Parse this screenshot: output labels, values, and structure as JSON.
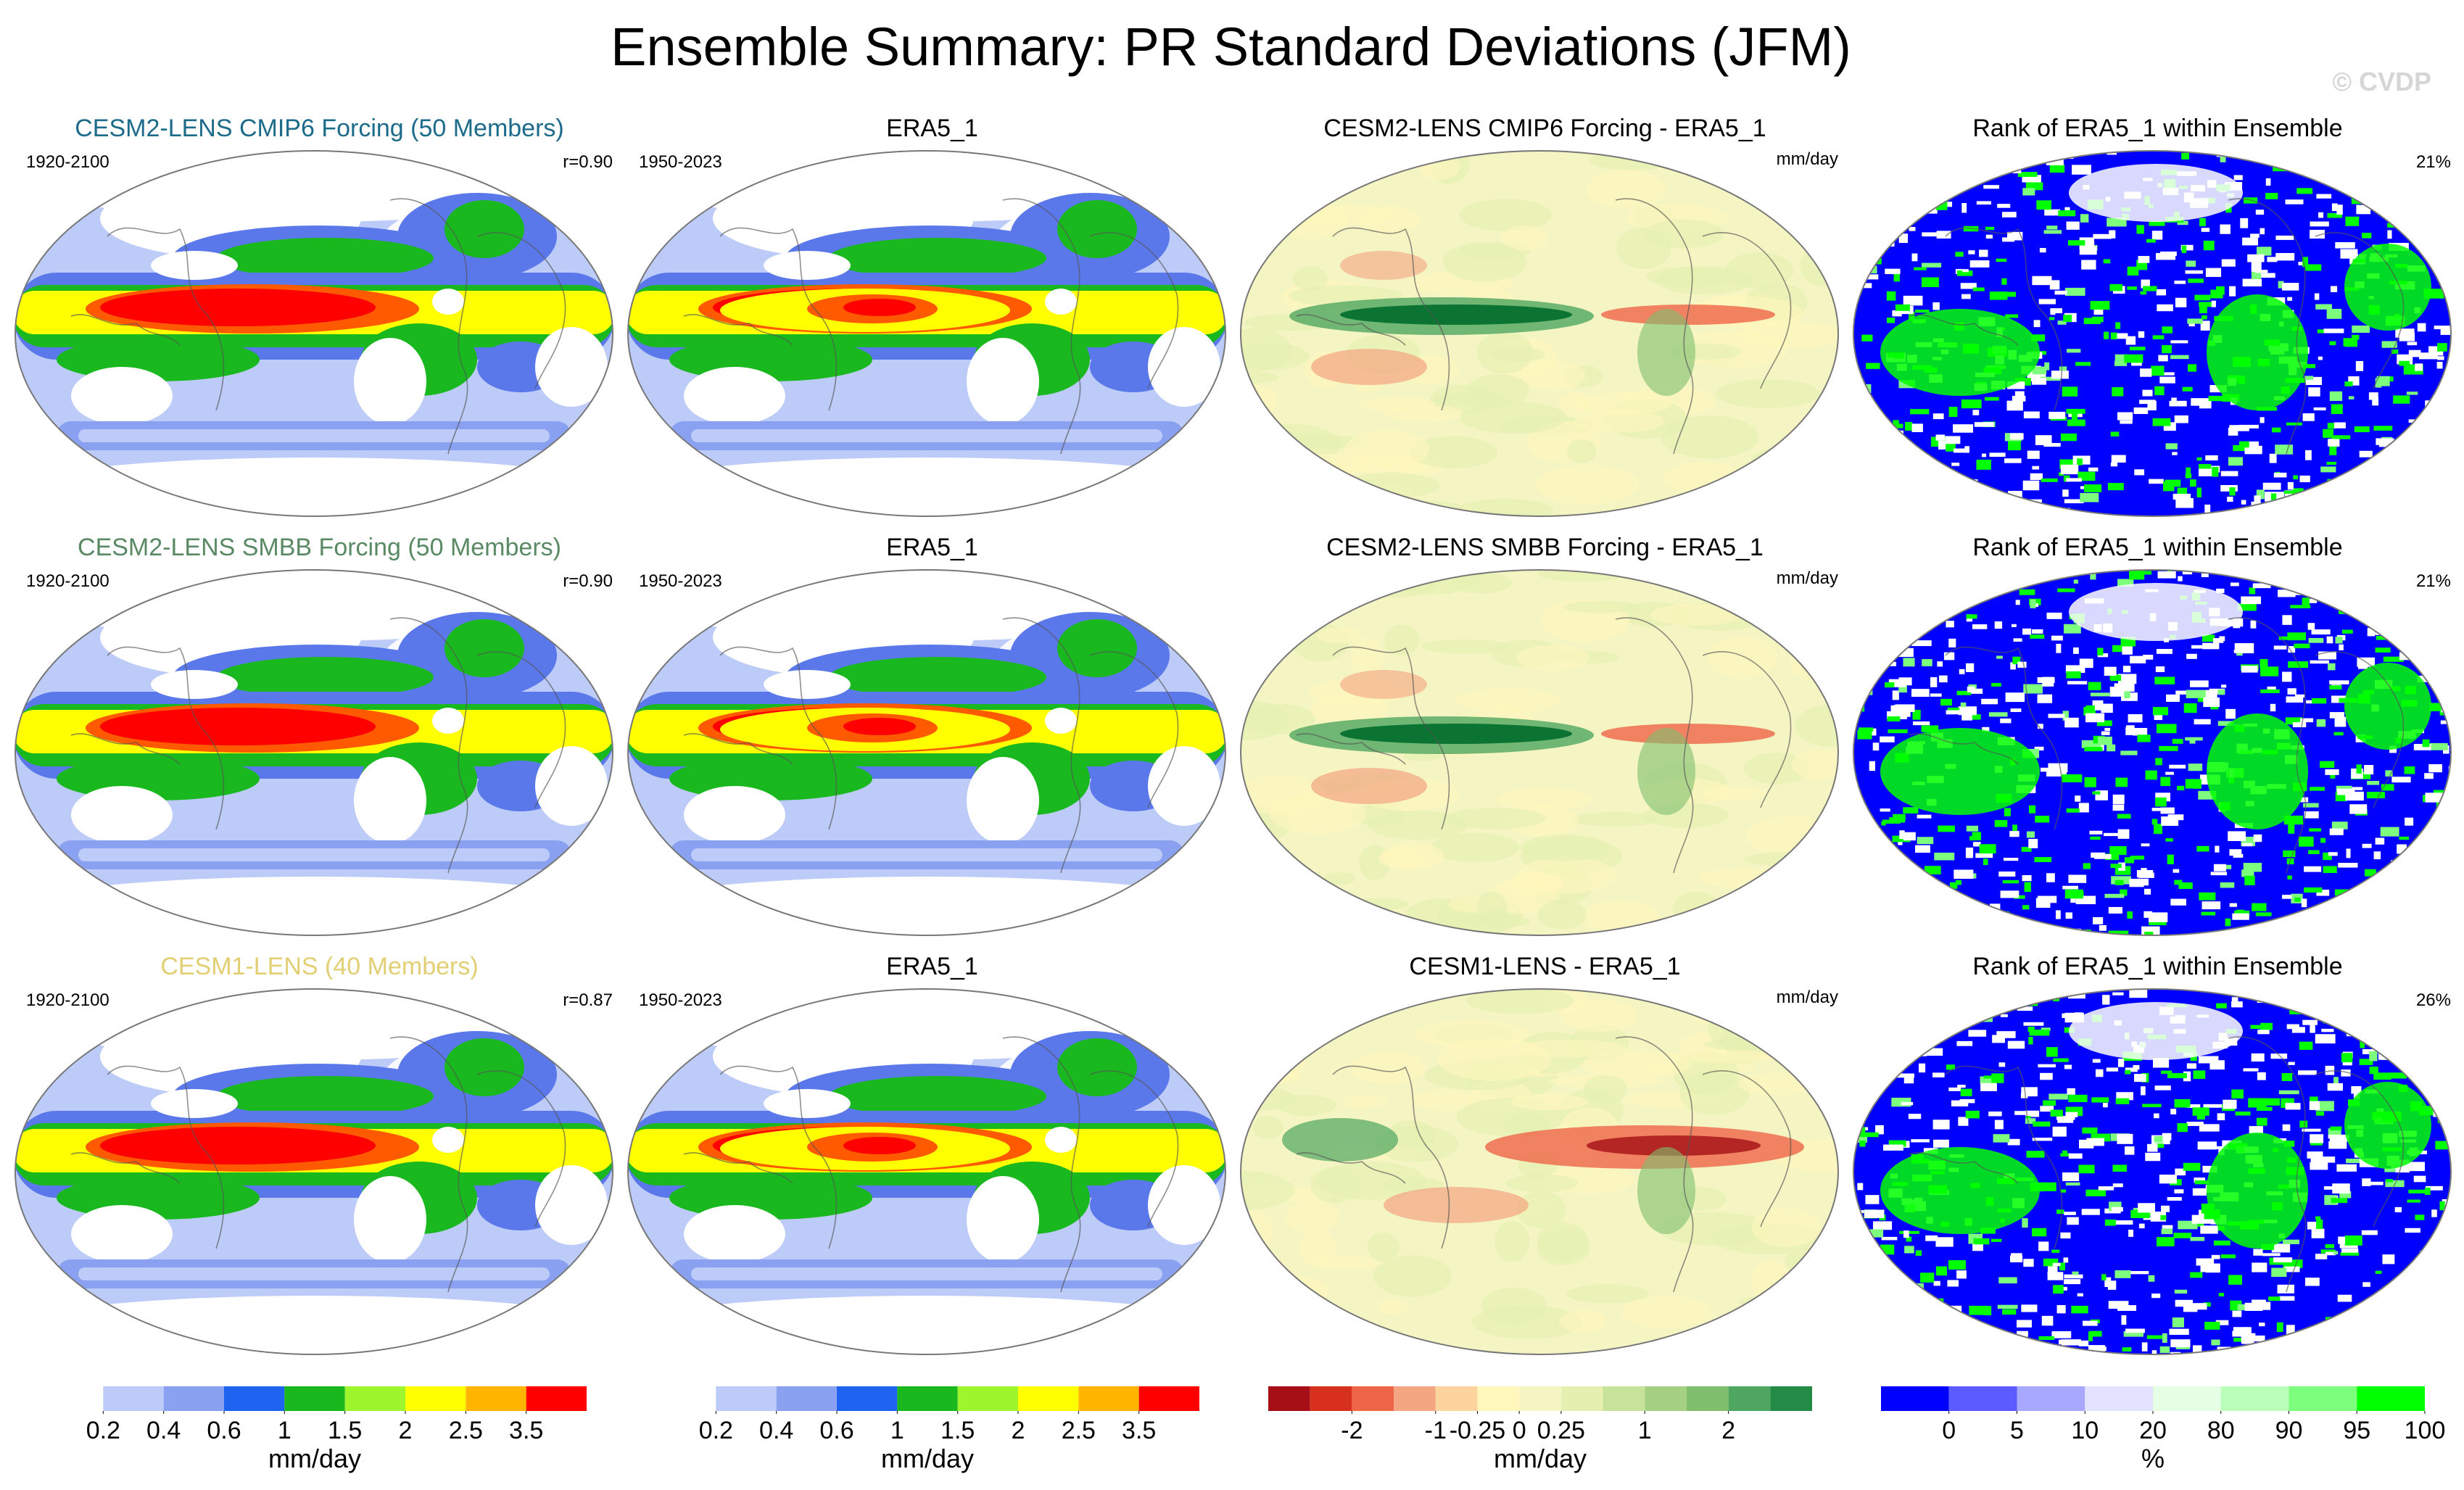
{
  "title": "Ensemble Summary: PR Standard Deviations (JFM)",
  "credit": "© CVDP",
  "colors": {
    "std_scale": [
      "#ffffff",
      "#bccbf7",
      "#8aa0f0",
      "#5b78ea",
      "#1e64f0",
      "#19b81e",
      "#4fd82a",
      "#9ef52b",
      "#ffff00",
      "#ffb400",
      "#ff5a00",
      "#ff0000"
    ],
    "diff_scale": [
      "#a50f15",
      "#d7301f",
      "#ef6548",
      "#f4a582",
      "#fdd49e",
      "#fff7bc",
      "#f5f5c4",
      "#e5f0b0",
      "#c7e39a",
      "#a5d082",
      "#7fbf6e",
      "#4fa660",
      "#238b45",
      "#006d2c"
    ],
    "rank_scale": [
      "#0000ff",
      "#5b5bff",
      "#a8a8ff",
      "#e3e3ff",
      "#ffffff",
      "#e5ffe5",
      "#b9ffb9",
      "#7dff7d",
      "#00ff00"
    ],
    "title_cmip6": "#1d6b8a",
    "title_smbb": "#5a8a64",
    "title_cesm1": "#e2cf73"
  },
  "rows": [
    {
      "model": {
        "title": "CESM2-LENS CMIP6 Forcing (50 Members)",
        "years": "1920-2100",
        "r": "r=0.90"
      },
      "obs": {
        "title": "ERA5_1",
        "years": "1950-2023"
      },
      "diff": {
        "title": "CESM2-LENS CMIP6 Forcing - ERA5_1",
        "units": "mm/day"
      },
      "rank": {
        "title": "Rank of ERA5_1 within Ensemble",
        "pct": "21%"
      }
    },
    {
      "model": {
        "title": "CESM2-LENS SMBB Forcing (50 Members)",
        "years": "1920-2100",
        "r": "r=0.90"
      },
      "obs": {
        "title": "ERA5_1",
        "years": "1950-2023"
      },
      "diff": {
        "title": "CESM2-LENS SMBB Forcing - ERA5_1",
        "units": "mm/day"
      },
      "rank": {
        "title": "Rank of ERA5_1 within Ensemble",
        "pct": "21%"
      }
    },
    {
      "model": {
        "title": "CESM1-LENS (40 Members)",
        "years": "1920-2100",
        "r": "r=0.87"
      },
      "obs": {
        "title": "ERA5_1",
        "years": "1950-2023"
      },
      "diff": {
        "title": "CESM1-LENS - ERA5_1",
        "units": "mm/day"
      },
      "rank": {
        "title": "Rank of ERA5_1 within Ensemble",
        "pct": "26%"
      }
    }
  ],
  "chart_data": [
    {
      "type": "heatmap",
      "title": "Ensemble Summary: PR Standard Deviations (JFM)",
      "panels_per_row": [
        "ensemble mean std",
        "observed std",
        "difference",
        "rank"
      ],
      "row_models": [
        "CESM2-LENS CMIP6 Forcing (50 Members)",
        "CESM2-LENS SMBB Forcing (50 Members)",
        "CESM1-LENS (40 Members)"
      ],
      "pattern_correlation": [
        0.9,
        0.9,
        0.87
      ],
      "rank_percent": [
        21,
        21,
        26
      ]
    },
    {
      "type": "colorbar",
      "name": "std",
      "units": "mm/day",
      "tick_labels": [
        "0.2",
        "0.4",
        "0.6",
        "1",
        "1.5",
        "2",
        "2.5",
        "3.5"
      ],
      "tick_boundaries": [
        1,
        2,
        3,
        4,
        5,
        6,
        7,
        8
      ],
      "n_bins": 9
    },
    {
      "type": "colorbar",
      "name": "diff",
      "units": "mm/day",
      "tick_labels": [
        "-2",
        "-1",
        "-0.25",
        "0",
        "0.25",
        "1",
        "2"
      ],
      "tick_boundaries": [
        2,
        4,
        5,
        6,
        7,
        9,
        11
      ],
      "n_bins": 13
    },
    {
      "type": "colorbar",
      "name": "rank",
      "units": "%",
      "tick_labels": [
        "0",
        "5",
        "10",
        "20",
        "80",
        "90",
        "95",
        "100"
      ],
      "tick_boundaries": [
        1,
        2,
        3,
        4,
        5,
        6,
        7,
        8
      ],
      "n_bins": 8
    }
  ],
  "colorbars": {
    "std": {
      "labels": [
        "0.2",
        "0.4",
        "0.6",
        "1",
        "1.5",
        "2",
        "2.5",
        "3.5"
      ],
      "units": "mm/day"
    },
    "diff": {
      "labels": [
        "-2",
        "-1",
        "-0.25",
        "0",
        "0.25",
        "1",
        "2"
      ],
      "units": "mm/day"
    },
    "rank": {
      "labels": [
        "0",
        "5",
        "10",
        "20",
        "80",
        "90",
        "95",
        "100"
      ],
      "units": "%"
    }
  }
}
